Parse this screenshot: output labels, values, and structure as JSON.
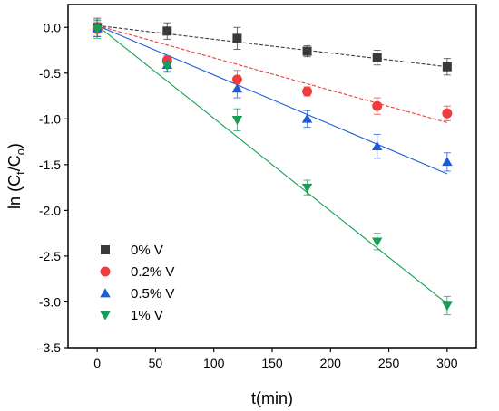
{
  "chart_data": {
    "type": "scatter",
    "title": "",
    "xlabel": "t(min)",
    "ylabel_parts": [
      "ln (C",
      "t",
      "/C",
      "o",
      ")"
    ],
    "xlim": [
      -25,
      325
    ],
    "ylim": [
      -3.5,
      0.25
    ],
    "xticks": [
      0,
      50,
      100,
      150,
      200,
      250,
      300
    ],
    "yticks": [
      0.0,
      -0.5,
      -1.0,
      -1.5,
      -2.0,
      -2.5,
      -3.0,
      -3.5
    ],
    "grid": false,
    "legend_position": "lower-left",
    "series": [
      {
        "name": "0% V",
        "color": "#3a3a3a",
        "marker": "square",
        "x": [
          0,
          60,
          120,
          180,
          240,
          300
        ],
        "y": [
          0.0,
          -0.04,
          -0.12,
          -0.26,
          -0.33,
          -0.43
        ],
        "error": [
          0.1,
          0.09,
          0.12,
          0.06,
          0.08,
          0.09
        ],
        "fit": {
          "x": [
            0,
            300
          ],
          "y": [
            0.02,
            -0.43
          ]
        }
      },
      {
        "name": "0.2% V",
        "color": "#f03c3c",
        "marker": "circle",
        "x": [
          0,
          60,
          120,
          180,
          240,
          300
        ],
        "y": [
          -0.02,
          -0.36,
          -0.57,
          -0.7,
          -0.86,
          -0.94
        ],
        "error": [
          0.08,
          0.05,
          0.1,
          0.05,
          0.09,
          0.08
        ],
        "fit": {
          "x": [
            0,
            300
          ],
          "y": [
            0.02,
            -1.04
          ]
        }
      },
      {
        "name": "0.5% V",
        "color": "#1f5bd6",
        "marker": "triangle-up",
        "x": [
          0,
          60,
          120,
          180,
          240,
          300
        ],
        "y": [
          -0.01,
          -0.41,
          -0.67,
          -1.0,
          -1.3,
          -1.47
        ],
        "error": [
          0.09,
          0.07,
          0.1,
          0.09,
          0.13,
          0.1
        ],
        "fit": {
          "x": [
            0,
            300
          ],
          "y": [
            0.02,
            -1.6
          ]
        }
      },
      {
        "name": "1% V",
        "color": "#14a050",
        "marker": "triangle-down",
        "x": [
          0,
          60,
          120,
          180,
          240,
          300
        ],
        "y": [
          -0.02,
          -0.42,
          -1.01,
          -1.75,
          -2.34,
          -3.04
        ],
        "error": [
          0.1,
          0.07,
          0.12,
          0.08,
          0.09,
          0.1
        ],
        "fit": {
          "x": [
            0,
            300
          ],
          "y": [
            0.02,
            -3.02
          ]
        }
      }
    ]
  }
}
